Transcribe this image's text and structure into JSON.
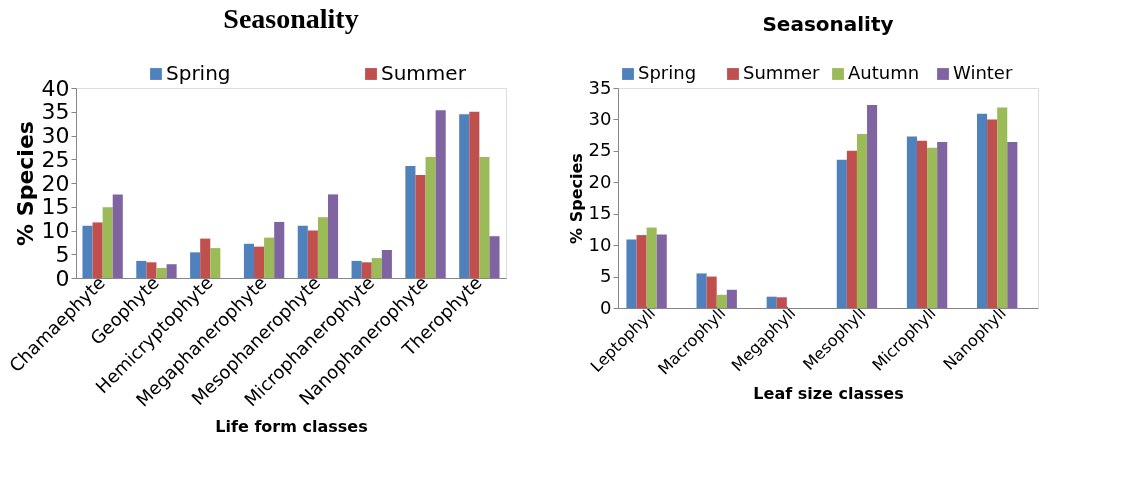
{
  "chart_data": [
    {
      "type": "bar",
      "title": "Seasonality",
      "xlabel": "Life form classes",
      "ylabel": "% Species",
      "categories": [
        "Chamaephyte",
        "Geophyte",
        "Hemicryptophyte",
        "Megaphanerophyte",
        "Mesophanerophyte",
        "Microphanerophyte",
        "Nanophanerophyte",
        "Therophyte"
      ],
      "series": [
        {
          "name": "Spring",
          "color": "#4f81bd",
          "values": [
            11,
            3.6,
            5.4,
            7.2,
            11,
            3.6,
            23.6,
            34.5
          ]
        },
        {
          "name": "Summer",
          "color": "#c0504d",
          "values": [
            11.7,
            3.3,
            8.3,
            6.6,
            10,
            3.3,
            21.7,
            35
          ]
        },
        {
          "color": "#9bbb59",
          "values": [
            14.9,
            2.1,
            6.3,
            8.5,
            12.8,
            4.2,
            25.5,
            25.5
          ]
        },
        {
          "color": "#8064a2",
          "values": [
            17.6,
            2.9,
            0,
            11.8,
            17.6,
            5.9,
            35.3,
            8.8
          ]
        }
      ],
      "ylim": [
        0,
        40
      ],
      "yticks": [
        0,
        5,
        10,
        15,
        20,
        25,
        30,
        35,
        40
      ],
      "grid": false,
      "legend": "top"
    },
    {
      "type": "bar",
      "title": "Seasonality",
      "xlabel": "Leaf size classes",
      "ylabel": "% Species",
      "categories": [
        "Leptophyll",
        "Macrophyll",
        "Megaphyll",
        "Mesophyll",
        "Microphyll",
        "Nanophyll"
      ],
      "series": [
        {
          "name": "Spring",
          "color": "#4f81bd",
          "values": [
            10.9,
            5.5,
            1.8,
            23.6,
            27.3,
            30.9
          ]
        },
        {
          "name": "Summer",
          "color": "#c0504d",
          "values": [
            11.6,
            5.0,
            1.7,
            25,
            26.6,
            30
          ]
        },
        {
          "name": "Autumn",
          "color": "#9bbb59",
          "values": [
            12.8,
            2.1,
            0,
            27.7,
            25.5,
            31.9
          ]
        },
        {
          "name": "Winter",
          "color": "#8064a2",
          "values": [
            11.7,
            2.9,
            0,
            32.3,
            26.4,
            26.4
          ]
        }
      ],
      "ylim": [
        0,
        35
      ],
      "yticks": [
        0,
        5,
        10,
        15,
        20,
        25,
        30,
        35
      ],
      "grid": false,
      "legend": "top"
    }
  ]
}
